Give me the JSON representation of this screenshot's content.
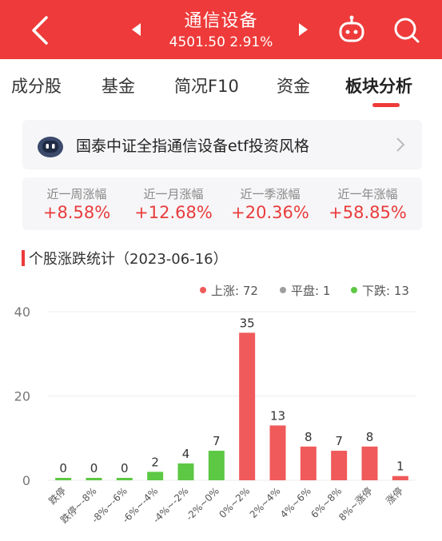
{
  "header": {
    "title": "通信设备",
    "index_value": "4501.50",
    "change_pct": "2.91%"
  },
  "tabs": [
    "成分股",
    "基金",
    "简况F10",
    "资金",
    "板块分析"
  ],
  "active_tab": "板块分析",
  "banner": {
    "text": "国泰中证全指通信设备etf投资风格"
  },
  "stats": [
    {
      "label": "近一周涨幅",
      "value": "+8.58%"
    },
    {
      "label": "近一月涨幅",
      "value": "+12.68%"
    },
    {
      "label": "近一季涨幅",
      "value": "+20.36%"
    },
    {
      "label": "近一年涨幅",
      "value": "+58.85%"
    }
  ],
  "section": {
    "title": "个股涨跌统计（2023-06-16）"
  },
  "legend": {
    "up": "上涨: 72",
    "flat": "平盘: 1",
    "down": "下跌: 13"
  },
  "colors": {
    "brand": "#ee3a3a",
    "up": "#f05a5a",
    "down": "#5cc843",
    "flat": "#9e9e9e"
  },
  "chart_data": {
    "type": "bar",
    "categories": [
      "跌停",
      "跌停~-8%",
      "-8%~-6%",
      "-6%~-4%",
      "-4%~-2%",
      "-2%~0%",
      "0%~2%",
      "2%~4%",
      "4%~6%",
      "6%~8%",
      "8%~涨停",
      "涨停"
    ],
    "values": [
      0,
      0,
      0,
      2,
      4,
      7,
      35,
      13,
      8,
      7,
      8,
      1
    ],
    "bar_groups": [
      "down",
      "down",
      "down",
      "down",
      "down",
      "down",
      "up",
      "up",
      "up",
      "up",
      "up",
      "up"
    ],
    "yticks": [
      0,
      20,
      40
    ],
    "ylim": [
      0,
      40
    ],
    "grid": true
  }
}
